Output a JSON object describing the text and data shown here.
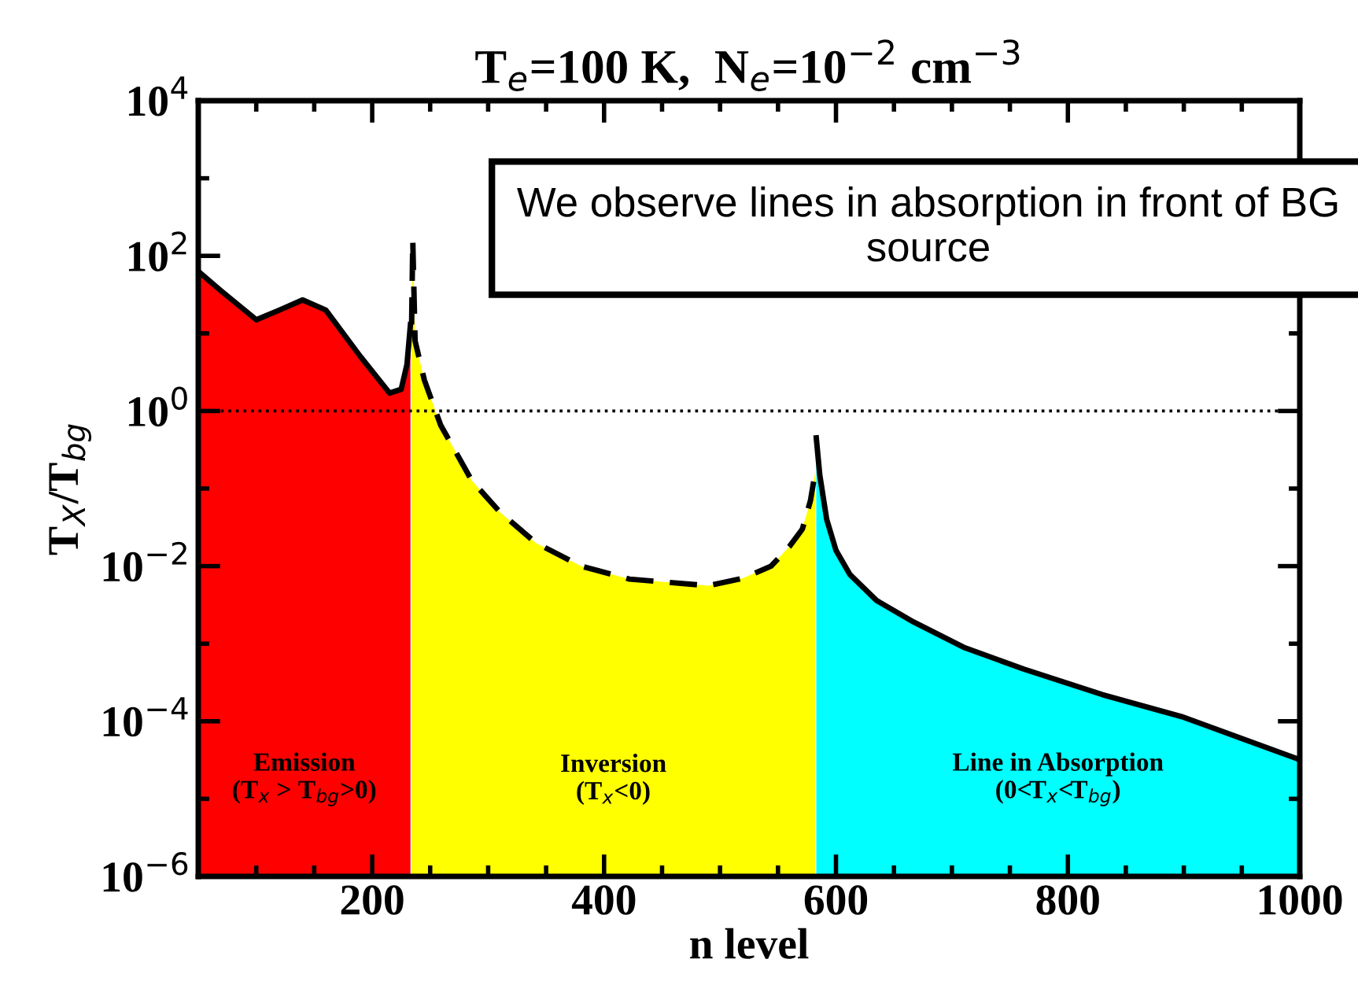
{
  "chart_data": {
    "type": "area",
    "title": "T$_{e}$=100 K,  N$_{e}$=10$^{−2}$ cm$^{−3}$",
    "xlabel": "n level",
    "ylabel": "T$_{X}$/T$_{bg}$",
    "log": "y",
    "xlim": [
      50,
      1000
    ],
    "xticks": [
      200,
      400,
      600,
      800,
      1000
    ],
    "ylim": [
      1e-06,
      10000.0
    ],
    "yticks": [
      {
        "value": 1e-06,
        "label": "10$^{−6}$"
      },
      {
        "value": 0.0001,
        "label": "10$^{−4}$"
      },
      {
        "value": 0.01,
        "label": "10$^{−2}$"
      },
      {
        "value": 1,
        "label": "10$^{0}$"
      },
      {
        "value": 100,
        "label": "10$^{2}$"
      },
      {
        "value": 10000,
        "label": "10$^{4}$"
      }
    ],
    "grid": false,
    "series": [
      {
        "name": "Emission\n(T$_{x}$ > T$_{bg}$>0)",
        "color": "#ff0000",
        "line_style": "solid",
        "x": [
          50,
          70,
          100,
          120,
          140,
          160,
          190,
          215,
          225,
          230,
          233
        ],
        "values": [
          63,
          35,
          15,
          20,
          27,
          20,
          5,
          1.7,
          1.9,
          4,
          13
        ]
      },
      {
        "name": "Inversion\n(T$_{x}$<0)",
        "color": "#ffff00",
        "line_style": "dashed",
        "x": [
          234,
          235,
          237,
          245,
          259,
          286,
          310,
          341,
          380,
          422,
          490,
          520,
          544,
          560,
          571,
          578,
          582
        ],
        "values": [
          13,
          160,
          8,
          2.5,
          0.66,
          0.126,
          0.05,
          0.02,
          0.01,
          0.0068,
          0.0056,
          0.007,
          0.01,
          0.018,
          0.03,
          0.07,
          0.16
        ]
      },
      {
        "name": "Line in Absorption\n(0<T$_{x}$<T$_{bg}$)",
        "color": "#00ffff",
        "line_style": "solid",
        "x": [
          583,
          586,
          592,
          600,
          612,
          635,
          667,
          710,
          762,
          830,
          898,
          950,
          1000
        ],
        "values": [
          0.45,
          0.15,
          0.04,
          0.016,
          0.0078,
          0.0036,
          0.0019,
          0.0009,
          0.00047,
          0.00022,
          0.000115,
          6e-05,
          3.2e-05
        ]
      }
    ],
    "ref_lines": [
      {
        "axis": "y",
        "value": 1,
        "line_style": "dotted",
        "color": "#000000"
      }
    ],
    "annotations": [
      "We observe lines in absorption in front of BG source"
    ]
  }
}
